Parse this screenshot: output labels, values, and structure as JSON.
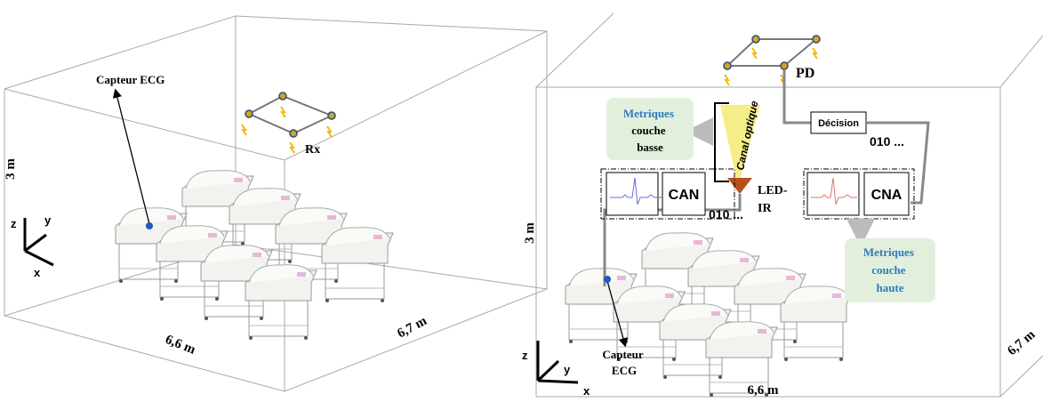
{
  "left_scene": {
    "sensor_label": "Capteur ECG",
    "receiver_label": "Rx",
    "height_label": "3 m",
    "width_label": "6,6 m",
    "depth_label": "6,7 m",
    "axes": {
      "z": "z",
      "y": "y",
      "x": "x"
    }
  },
  "right_scene": {
    "photodiode_label": "PD",
    "low_layer_metrics": [
      "Metriques",
      "couche",
      "basse"
    ],
    "channel_label": "Canal optique",
    "decision_label": "Décision",
    "bits_top": "010 ...",
    "adc_label": "CAN",
    "led_label": [
      "LED-",
      "IR"
    ],
    "bits_bottom": "010 ...",
    "dac_label": "CNA",
    "high_layer_metrics": [
      "Metriques",
      "couche",
      "haute"
    ],
    "height_label": "3 m",
    "sensor_label": [
      "Capteur",
      "ECG"
    ],
    "width_label": "6,6 m",
    "depth_label": "6,7 m",
    "axes": {
      "z": "z",
      "y": "y",
      "x": "x"
    }
  }
}
